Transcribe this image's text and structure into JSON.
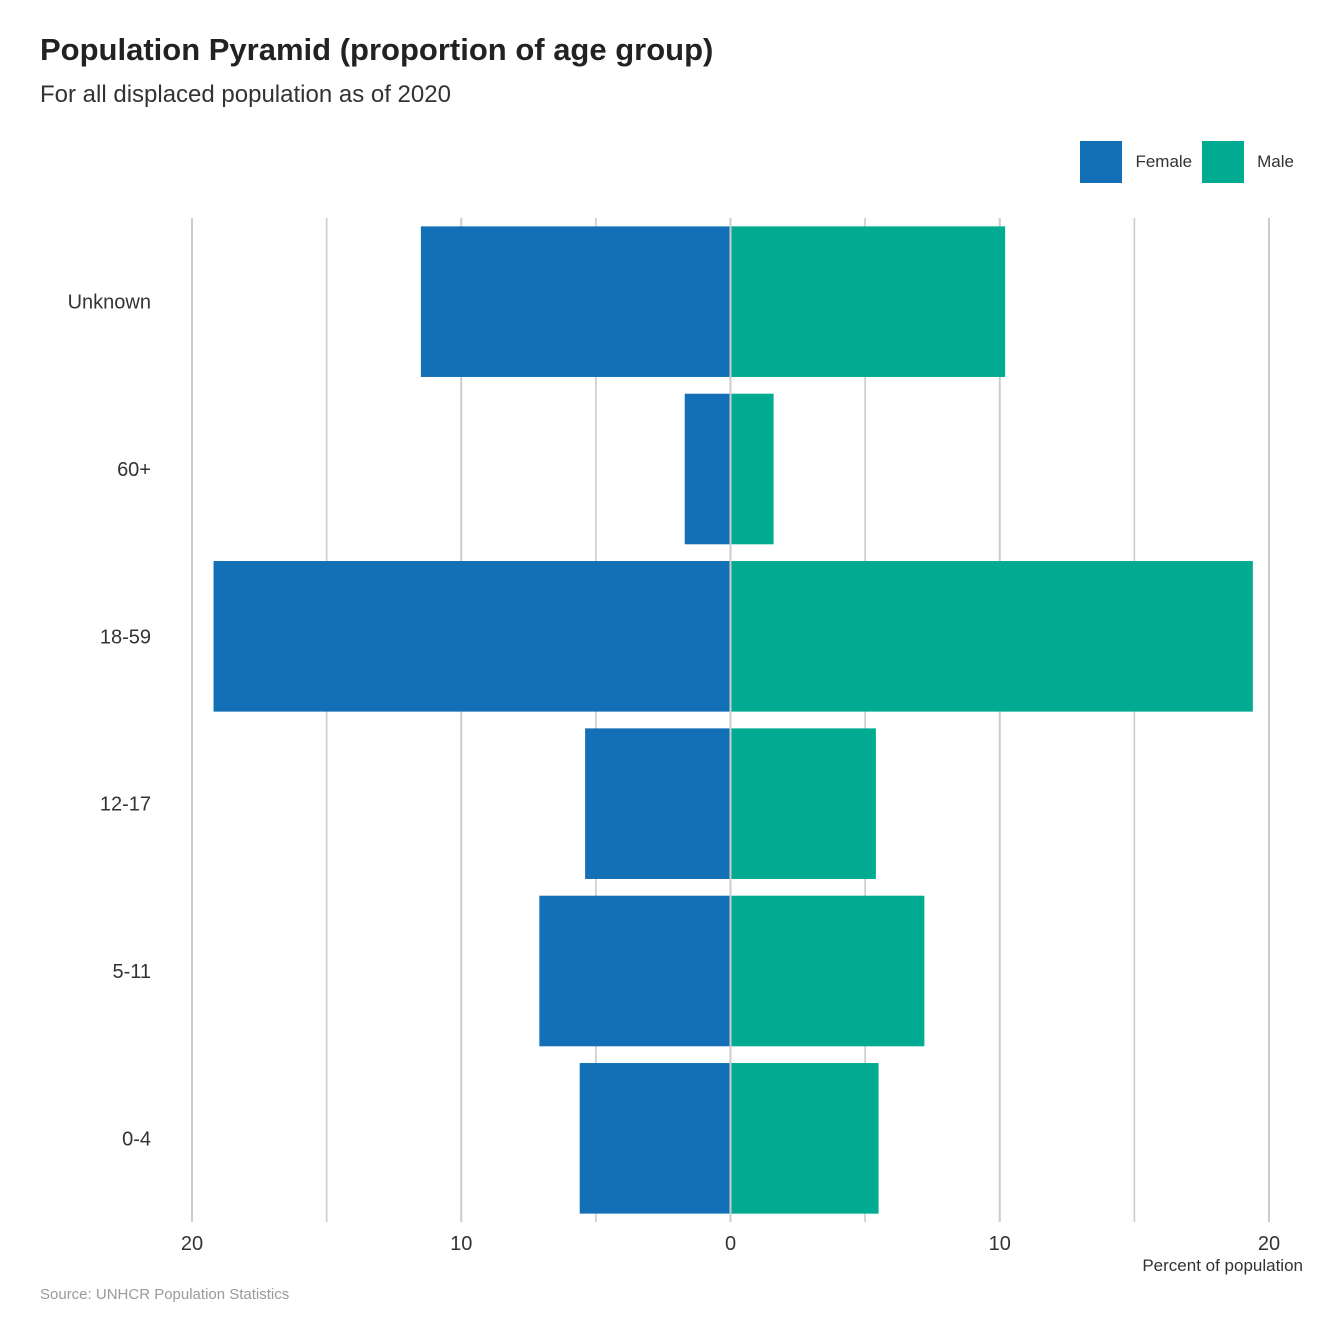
{
  "colors": {
    "female": "#1470b6",
    "male": "#00ab92",
    "grid": "#cccccc"
  },
  "title": "Population Pyramid (proportion of age group)",
  "subtitle": "For all displaced population as of 2020",
  "caption": "Source: UNHCR Population Statistics",
  "legend": {
    "female": "Female",
    "male": "Male"
  },
  "chart_data": {
    "type": "bar",
    "orientation": "horizontal",
    "categories": [
      "Unknown",
      "60+",
      "18-59",
      "12-17",
      "5-11",
      "0-4"
    ],
    "series": [
      {
        "name": "Female",
        "values": [
          11.5,
          1.7,
          19.2,
          5.4,
          7.1,
          5.6
        ]
      },
      {
        "name": "Male",
        "values": [
          10.2,
          1.6,
          19.4,
          5.4,
          7.2,
          5.5
        ]
      }
    ],
    "xlabel": "Percent of population",
    "xlim": [
      -20,
      20
    ],
    "x_ticks": [
      -20,
      -10,
      0,
      10,
      20
    ],
    "x_tick_labels": [
      "20",
      "10",
      "0",
      "10",
      "20"
    ],
    "grid": true,
    "legend_position": "top-right"
  }
}
